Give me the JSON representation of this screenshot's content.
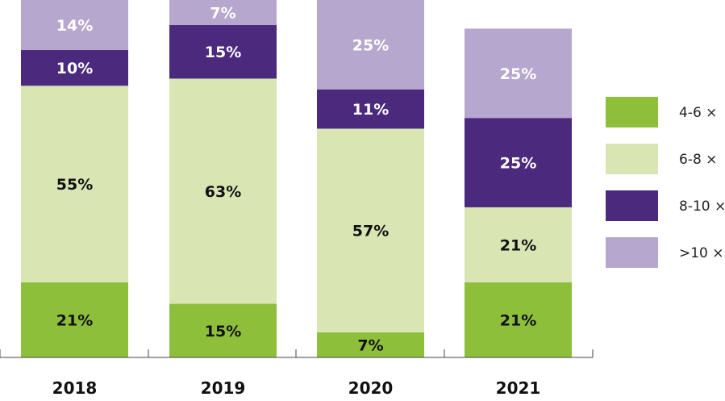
{
  "chart_data": {
    "type": "bar",
    "stacked": true,
    "percent": true,
    "categories": [
      "2018",
      "2019",
      "2020",
      "2021"
    ],
    "series": [
      {
        "name": "4-6 ×",
        "values": [
          21,
          15,
          7,
          21
        ],
        "color": "#8dbf3b",
        "label_color": "#111111"
      },
      {
        "name": "6-8 ×",
        "values": [
          55,
          63,
          57,
          21
        ],
        "color": "#d9e6b4",
        "label_color": "#111111"
      },
      {
        "name": "8-10 ×",
        "values": [
          10,
          15,
          11,
          25
        ],
        "color": "#4b2a7e",
        "label_color": "#ffffff"
      },
      {
        "name": ">10 ×",
        "values": [
          14,
          7,
          25,
          25
        ],
        "color": "#b6a7ce",
        "label_color": "#ffffff"
      }
    ],
    "data_labels": [
      [
        "21%",
        "15%",
        "7%",
        "21%"
      ],
      [
        "55%",
        "63%",
        "57%",
        "21%"
      ],
      [
        "10%",
        "15%",
        "11%",
        "25%"
      ],
      [
        "14%",
        "7%",
        "25%",
        "25%"
      ]
    ],
    "ylim": [
      0,
      100
    ],
    "grid": false,
    "legend_position": "right"
  }
}
